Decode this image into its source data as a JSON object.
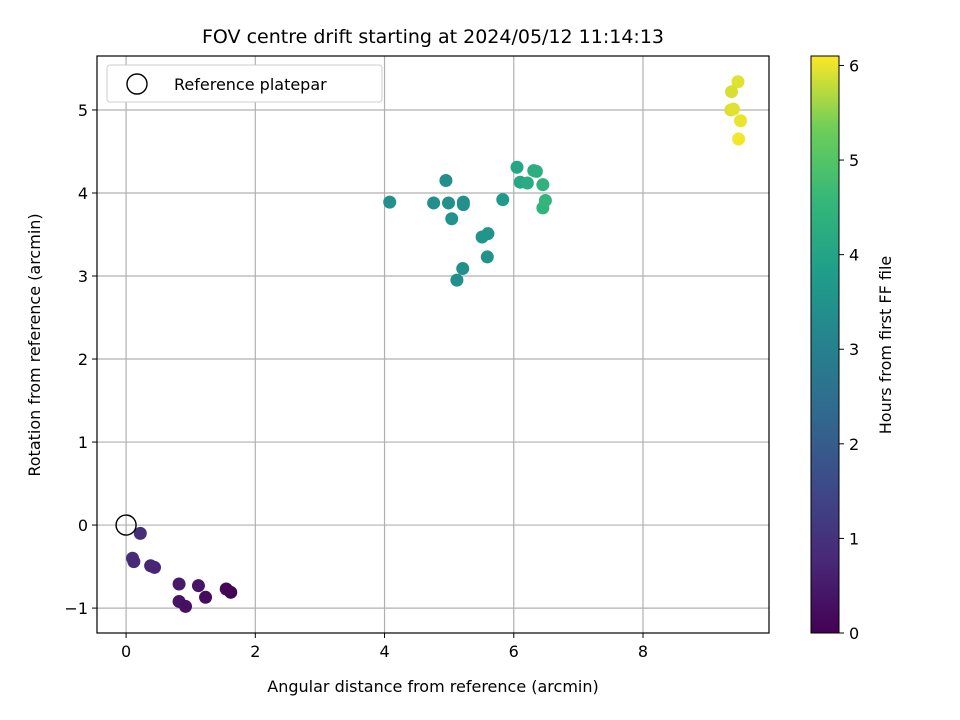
{
  "chart_data": {
    "type": "scatter",
    "title": "FOV centre drift starting at 2024/05/12 11:14:13",
    "xlabel": "Angular distance from reference (arcmin)",
    "ylabel": "Rotation from reference (arcmin)",
    "xlim": [
      -0.45,
      9.95
    ],
    "ylim": [
      -1.3,
      5.65
    ],
    "xticks": [
      0,
      2,
      4,
      6,
      8
    ],
    "yticks": [
      -1,
      0,
      1,
      2,
      3,
      4,
      5
    ],
    "grid": true,
    "legend": {
      "entries": [
        "Reference platepar"
      ],
      "placement": "top-left"
    },
    "reference_point": {
      "x": 0,
      "y": 0,
      "marker": "open-circle",
      "color": "#000000"
    },
    "colorbar": {
      "label": "Hours from first FF file",
      "range": [
        0,
        6.1
      ],
      "ticks": [
        0,
        1,
        2,
        3,
        4,
        5,
        6
      ],
      "colormap": "viridis"
    },
    "series": [
      {
        "points": [
          {
            "x": 0.22,
            "y": -0.1,
            "c": 0.9
          },
          {
            "x": 0.1,
            "y": -0.4,
            "c": 0.85
          },
          {
            "x": 0.12,
            "y": -0.44,
            "c": 0.8
          },
          {
            "x": 0.38,
            "y": -0.49,
            "c": 0.75
          },
          {
            "x": 0.44,
            "y": -0.51,
            "c": 0.7
          },
          {
            "x": 0.82,
            "y": -0.71,
            "c": 0.5
          },
          {
            "x": 1.12,
            "y": -0.73,
            "c": 0.4
          },
          {
            "x": 0.82,
            "y": -0.92,
            "c": 0.35
          },
          {
            "x": 0.92,
            "y": -0.98,
            "c": 0.3
          },
          {
            "x": 1.23,
            "y": -0.87,
            "c": 0.2
          },
          {
            "x": 1.55,
            "y": -0.77,
            "c": 0.1
          },
          {
            "x": 1.62,
            "y": -0.81,
            "c": 0.05
          },
          {
            "x": 4.08,
            "y": 3.89,
            "c": 3.45
          },
          {
            "x": 4.95,
            "y": 4.15,
            "c": 3.4
          },
          {
            "x": 4.76,
            "y": 3.88,
            "c": 3.4
          },
          {
            "x": 4.99,
            "y": 3.88,
            "c": 3.45
          },
          {
            "x": 5.22,
            "y": 3.89,
            "c": 3.45
          },
          {
            "x": 5.22,
            "y": 3.86,
            "c": 3.45
          },
          {
            "x": 5.04,
            "y": 3.69,
            "c": 3.5
          },
          {
            "x": 5.51,
            "y": 3.47,
            "c": 3.55
          },
          {
            "x": 5.6,
            "y": 3.51,
            "c": 3.55
          },
          {
            "x": 5.59,
            "y": 3.23,
            "c": 3.5
          },
          {
            "x": 5.21,
            "y": 3.09,
            "c": 3.4
          },
          {
            "x": 5.12,
            "y": 2.95,
            "c": 3.4
          },
          {
            "x": 5.83,
            "y": 3.92,
            "c": 3.7
          },
          {
            "x": 6.05,
            "y": 4.31,
            "c": 4.05
          },
          {
            "x": 6.1,
            "y": 4.13,
            "c": 4.1
          },
          {
            "x": 6.21,
            "y": 4.12,
            "c": 4.2
          },
          {
            "x": 6.31,
            "y": 4.27,
            "c": 4.25
          },
          {
            "x": 6.35,
            "y": 4.26,
            "c": 4.3
          },
          {
            "x": 6.45,
            "y": 4.1,
            "c": 4.4
          },
          {
            "x": 6.45,
            "y": 3.82,
            "c": 4.45
          },
          {
            "x": 6.49,
            "y": 3.91,
            "c": 4.5
          },
          {
            "x": 9.47,
            "y": 5.34,
            "c": 5.95
          },
          {
            "x": 9.37,
            "y": 5.22,
            "c": 5.9
          },
          {
            "x": 9.36,
            "y": 5.0,
            "c": 5.9
          },
          {
            "x": 9.4,
            "y": 5.01,
            "c": 5.95
          },
          {
            "x": 9.51,
            "y": 4.87,
            "c": 6.0
          },
          {
            "x": 9.48,
            "y": 4.65,
            "c": 6.05
          }
        ]
      }
    ]
  }
}
